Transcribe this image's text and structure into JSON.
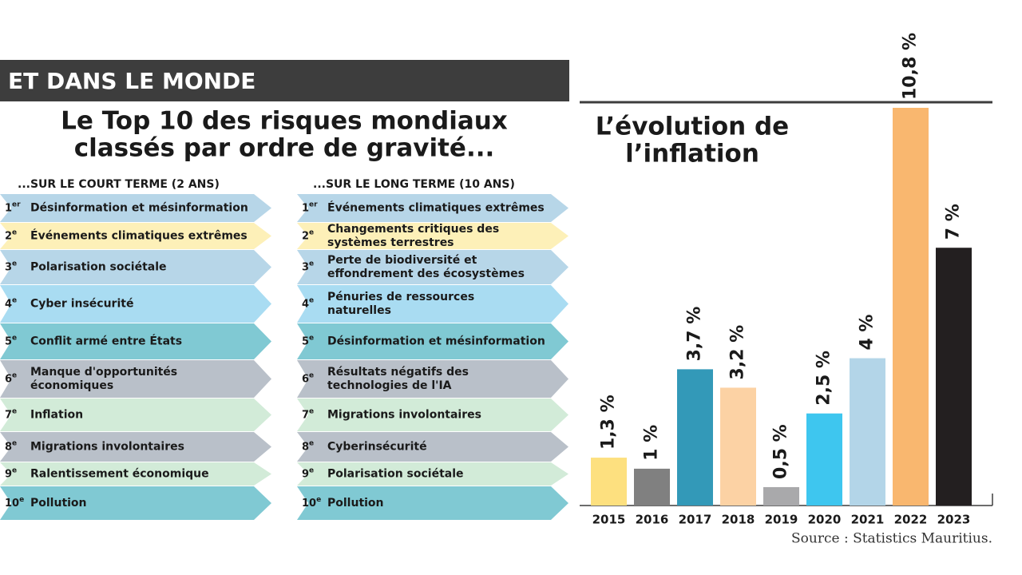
{
  "header": "ET DANS LE MONDE",
  "title": [
    "Le Top 10 des risques mondiaux",
    "classés par ordre de gravité..."
  ],
  "short_term": {
    "heading": "...SUR LE COURT TERME (2 ANS)",
    "items": [
      {
        "rank": "1",
        "suffix": "er",
        "lines": [
          "Désinformation et mésinformation"
        ]
      },
      {
        "rank": "2",
        "suffix": "e",
        "lines": [
          "Événements climatiques extrêmes"
        ]
      },
      {
        "rank": "3",
        "suffix": "e",
        "lines": [
          "Polarisation sociétale"
        ]
      },
      {
        "rank": "4",
        "suffix": "e",
        "lines": [
          "Cyber insécurité"
        ]
      },
      {
        "rank": "5",
        "suffix": "e",
        "lines": [
          "Conflit armé entre États"
        ]
      },
      {
        "rank": "6",
        "suffix": "e",
        "lines": [
          "Manque d'opportunités",
          "économiques"
        ]
      },
      {
        "rank": "7",
        "suffix": "e",
        "lines": [
          "Inflation"
        ]
      },
      {
        "rank": "8",
        "suffix": "e",
        "lines": [
          "Migrations involontaires"
        ]
      },
      {
        "rank": "9",
        "suffix": "e",
        "lines": [
          "Ralentissement économique"
        ]
      },
      {
        "rank": "10",
        "suffix": "e",
        "lines": [
          "Pollution"
        ]
      }
    ]
  },
  "long_term": {
    "heading": "...SUR LE LONG TERME (10 ANS)",
    "items": [
      {
        "rank": "1",
        "suffix": "er",
        "lines": [
          "Événements climatiques extrêmes"
        ]
      },
      {
        "rank": "2",
        "suffix": "e",
        "lines": [
          "Changements critiques des",
          "systèmes terrestres"
        ]
      },
      {
        "rank": "3",
        "suffix": "e",
        "lines": [
          "Perte de biodiversité et",
          "effondrement des écosystèmes"
        ]
      },
      {
        "rank": "4",
        "suffix": "e",
        "lines": [
          "Pénuries de ressources",
          "naturelles"
        ]
      },
      {
        "rank": "5",
        "suffix": "e",
        "lines": [
          "Désinformation et mésinformation"
        ]
      },
      {
        "rank": "6",
        "suffix": "e",
        "lines": [
          "Résultats négatifs des",
          "technologies de l'IA"
        ]
      },
      {
        "rank": "7",
        "suffix": "e",
        "lines": [
          "Migrations involontaires"
        ]
      },
      {
        "rank": "8",
        "suffix": "e",
        "lines": [
          "Cyberinsécurité"
        ]
      },
      {
        "rank": "9",
        "suffix": "e",
        "lines": [
          "Polarisation sociétale"
        ]
      },
      {
        "rank": "10",
        "suffix": "e",
        "lines": [
          "Pollution"
        ]
      }
    ]
  },
  "chart_data": {
    "type": "bar",
    "title": [
      "L’évolution de",
      "l’inflation"
    ],
    "categories": [
      "2015",
      "2016",
      "2017",
      "2018",
      "2019",
      "2020",
      "2021",
      "2022",
      "2023"
    ],
    "values": [
      1.3,
      1,
      3.7,
      3.2,
      0.5,
      2.5,
      4,
      10.8,
      7
    ],
    "value_labels": [
      "1,3 %",
      "1 %",
      "3,7 %",
      "3,2 %",
      "0,5 %",
      "2,5 %",
      "4 %",
      "10,8 %",
      "7 %"
    ],
    "colors": [
      "#fde07f",
      "#808080",
      "#3399b8",
      "#fcd2a4",
      "#a9a9ab",
      "#3ec6ef",
      "#b3d5e8",
      "#f9b76f",
      "#231f20"
    ],
    "source": "Source : Statistics Mauritius."
  }
}
